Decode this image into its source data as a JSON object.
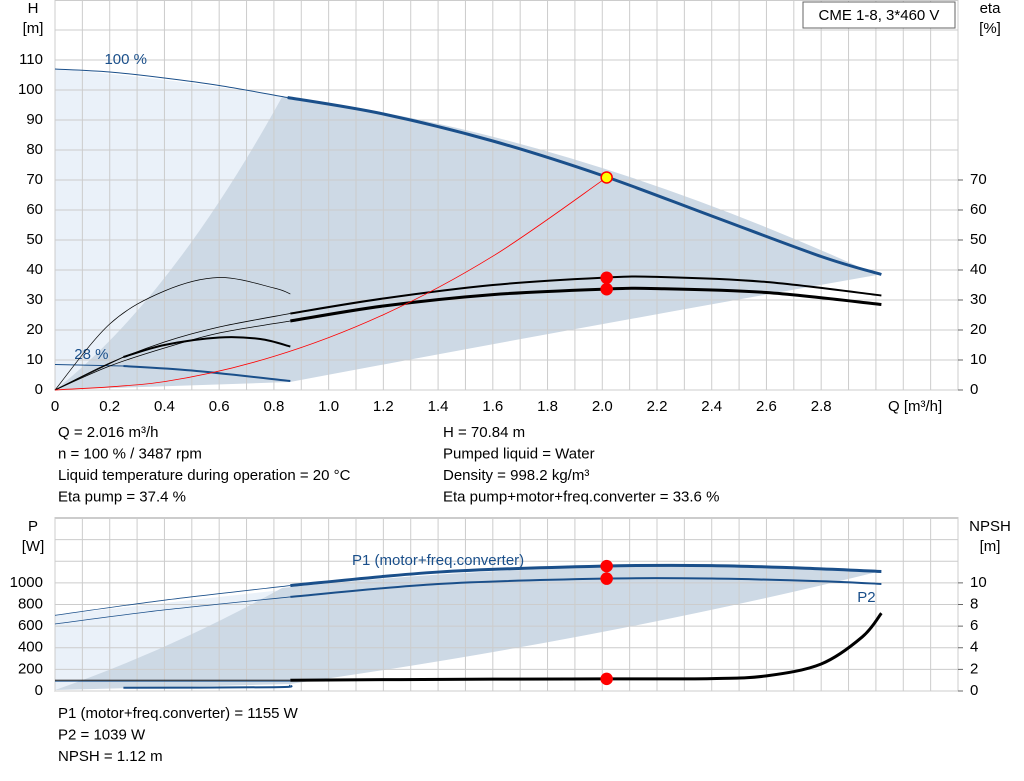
{
  "badge": "CME 1-8, 3*460 V",
  "info": {
    "top_left": [
      "Q = 2.016 m³/h",
      "n = 100 % / 3487 rpm",
      "Liquid temperature during operation = 20 °C",
      "Eta pump = 37.4 %"
    ],
    "top_right": [
      "H = 70.84 m",
      "Pumped liquid = Water",
      "Density = 998.2 kg/m³",
      "Eta pump+motor+freq.converter = 33.6 %"
    ],
    "bottom": [
      "P1 (motor+freq.converter) = 1155 W",
      "P2 = 1039 W",
      "NPSH = 1.12 m"
    ]
  },
  "chart_data": [
    {
      "type": "line",
      "grid": true,
      "y_label": [
        "H",
        "[m]"
      ],
      "y2_label": [
        "eta",
        "[%]"
      ],
      "x_label": "Q [m³/h]",
      "xlim": [
        0,
        3.3
      ],
      "ylim": [
        0,
        130
      ],
      "y2lim": [
        0,
        130
      ],
      "xticks": [
        0,
        0.2,
        0.4,
        0.6,
        0.8,
        {
          "value": 1,
          "label": "1.0"
        },
        1.2,
        1.4,
        1.6,
        1.8,
        {
          "value": 2,
          "label": "2.0"
        },
        2.2,
        2.4,
        2.6,
        2.8
      ],
      "xgrid_minor": [
        0.1,
        0.3,
        0.5,
        0.7,
        0.9,
        1.1,
        1.3,
        1.5,
        1.7,
        1.9,
        2.1,
        2.3,
        2.5,
        2.7,
        2.9,
        3.0,
        3.1,
        3.2,
        3.3
      ],
      "yticks": [
        0,
        10,
        20,
        30,
        40,
        50,
        60,
        70,
        80,
        90,
        100,
        110
      ],
      "ygrid_minor": [
        120
      ],
      "y2ticks": [
        0,
        10,
        20,
        30,
        40,
        50,
        60,
        70
      ],
      "series": [
        {
          "name": "100 %",
          "color": "#1a4f8a",
          "width": 1,
          "x": [
            0,
            0.2,
            0.4,
            0.6,
            0.85
          ],
          "values": [
            107,
            106,
            104,
            101.5,
            97.5
          ]
        },
        {
          "color": "#1a4f8a",
          "width": 3,
          "x": [
            0.85,
            1.2,
            1.6,
            2.0,
            2.4,
            2.8,
            3.02
          ],
          "values": [
            97.5,
            92,
            83,
            71.5,
            58,
            44.5,
            38.5
          ]
        },
        {
          "name": "28 %",
          "color": "#1a4f8a",
          "width": 1,
          "x": [
            0,
            0.25
          ],
          "values": [
            8.5,
            8
          ]
        },
        {
          "color": "#1a4f8a",
          "width": 2,
          "x": [
            0.25,
            0.5,
            0.86
          ],
          "values": [
            8,
            6.5,
            3
          ]
        },
        {
          "color": "#000000",
          "width": 0.8,
          "axis": "y2",
          "x": [
            0,
            0.2,
            0.4,
            0.6,
            0.86
          ],
          "values": [
            0,
            9,
            16,
            21,
            25.5
          ]
        },
        {
          "color": "#000000",
          "width": 2,
          "axis": "y2",
          "x": [
            0.86,
            1.2,
            1.6,
            2.0,
            2.2,
            2.6,
            3.02
          ],
          "values": [
            25.5,
            30.5,
            35,
            37.4,
            37.7,
            36,
            31.5
          ]
        },
        {
          "color": "#000000",
          "width": 0.8,
          "axis": "y2",
          "x": [
            0,
            0.2,
            0.4,
            0.6,
            0.86
          ],
          "values": [
            0,
            8,
            14,
            19,
            23
          ]
        },
        {
          "color": "#000000",
          "width": 3,
          "axis": "y2",
          "x": [
            0.86,
            1.2,
            1.6,
            2.0,
            2.2,
            2.6,
            3.02
          ],
          "values": [
            23,
            28,
            31.8,
            33.6,
            33.8,
            32.5,
            28.5
          ]
        },
        {
          "color": "#000000",
          "width": 0.7,
          "axis": "y2",
          "x": [
            0,
            0.2,
            0.4,
            0.6,
            0.8,
            0.86
          ],
          "values": [
            0,
            22,
            33,
            37.5,
            34,
            32
          ]
        },
        {
          "color": "#000000",
          "width": 0.7,
          "axis": "y2",
          "x": [
            0,
            0.25
          ],
          "values": [
            0,
            11
          ]
        },
        {
          "color": "#000000",
          "width": 2,
          "axis": "y2",
          "x": [
            0.25,
            0.4,
            0.6,
            0.75,
            0.86
          ],
          "values": [
            11,
            15,
            17.5,
            17,
            14.5
          ]
        },
        {
          "color": "#ff0000",
          "width": 0.8,
          "x": [
            0,
            0.4,
            0.8,
            1.2,
            1.6,
            2.016
          ],
          "values": [
            0,
            2.8,
            11.2,
            25.1,
            44.6,
            70.84
          ]
        },
        {
          "marker": true,
          "color": "#ff0000",
          "fill": "#ffff00",
          "x": [
            2.016
          ],
          "values": [
            70.84
          ]
        },
        {
          "marker": true,
          "color": "#ff0000",
          "fill": "#ff0000",
          "axis": "y2",
          "x": [
            2.016,
            2.016
          ],
          "values": [
            37.4,
            33.6
          ]
        }
      ]
    },
    {
      "type": "line",
      "grid": true,
      "y_label": [
        "P",
        "[W]"
      ],
      "y2_label": [
        "NPSH",
        "[m]"
      ],
      "xlim": [
        0,
        3.3
      ],
      "ylim": [
        0,
        1600
      ],
      "y2lim": [
        0,
        16
      ],
      "xgrid_minor": [
        0,
        0.1,
        0.2,
        0.3,
        0.4,
        0.5,
        0.6,
        0.7,
        0.8,
        0.9,
        1.0,
        1.1,
        1.2,
        1.3,
        1.4,
        1.5,
        1.6,
        1.7,
        1.8,
        1.9,
        2.0,
        2.1,
        2.2,
        2.3,
        2.4,
        2.5,
        2.6,
        2.7,
        2.8,
        2.9,
        3.0,
        3.1,
        3.2,
        3.3
      ],
      "yticks": [
        0,
        200,
        400,
        600,
        800,
        1000
      ],
      "ygrid_minor": [
        1200,
        1400
      ],
      "y2ticks": [
        0,
        2,
        4,
        6,
        8,
        10
      ],
      "series": [
        {
          "color": "#1a4f8a",
          "width": 0.8,
          "x": [
            0,
            0.4,
            0.86
          ],
          "values": [
            700,
            840,
            975
          ]
        },
        {
          "name": "P1 (motor+freq.converter)",
          "color": "#1a4f8a",
          "width": 3,
          "x": [
            0.86,
            1.4,
            2.0,
            2.4,
            2.8,
            3.02
          ],
          "values": [
            975,
            1100,
            1155,
            1160,
            1130,
            1105
          ]
        },
        {
          "color": "#1a4f8a",
          "width": 0.8,
          "x": [
            0,
            0.4,
            0.86
          ],
          "values": [
            620,
            750,
            870
          ]
        },
        {
          "name": "P2",
          "color": "#1a4f8a",
          "width": 2,
          "x": [
            0.86,
            1.4,
            2.0,
            2.4,
            2.8,
            3.02
          ],
          "values": [
            870,
            990,
            1039,
            1040,
            1015,
            990
          ]
        },
        {
          "color": "#1a4f8a",
          "width": 0.8,
          "x": [
            0,
            0.86
          ],
          "values": [
            90,
            90
          ]
        },
        {
          "color": "#1a4f8a",
          "width": 2,
          "x": [
            0.25,
            0.8,
            0.86
          ],
          "values": [
            30,
            35,
            50
          ]
        },
        {
          "color": "#000000",
          "width": 0.8,
          "axis": "y2",
          "x": [
            0,
            0.86
          ],
          "values": [
            1,
            1
          ]
        },
        {
          "color": "#000000",
          "width": 3,
          "axis": "y2",
          "x": [
            0.86,
            1.6,
            2.0,
            2.4,
            2.6,
            2.8,
            2.95,
            3.02
          ],
          "values": [
            1,
            1.1,
            1.12,
            1.15,
            1.4,
            2.5,
            5,
            7.2
          ]
        },
        {
          "marker": true,
          "color": "#ff0000",
          "fill": "#ff0000",
          "x": [
            2.016,
            2.016
          ],
          "values": [
            1155,
            1039
          ]
        },
        {
          "marker": true,
          "color": "#ff0000",
          "fill": "#ff0000",
          "axis": "y2",
          "x": [
            2.016
          ],
          "values": [
            1.12
          ]
        }
      ]
    }
  ]
}
